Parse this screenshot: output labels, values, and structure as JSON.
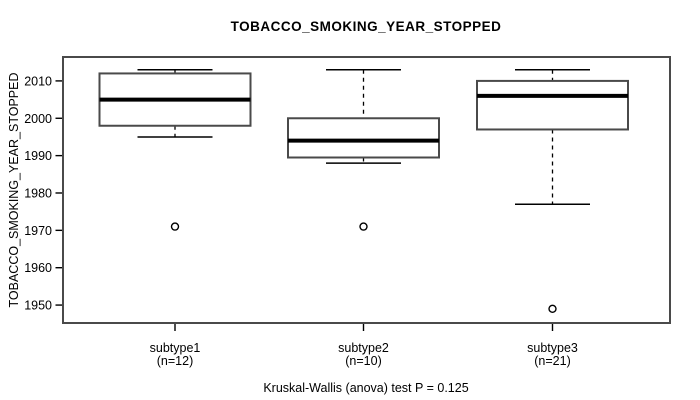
{
  "title": "TOBACCO_SMOKING_YEAR_STOPPED",
  "footer": "Kruskal-Wallis (anova) test P = 0.125",
  "colors": {
    "line": "#000000",
    "box_border": "#4a4a4a",
    "box_fill": "#ffffff",
    "frame": "#4a4a4a",
    "background": "#ffffff"
  },
  "chart_data": {
    "type": "boxplot",
    "title": "TOBACCO_SMOKING_YEAR_STOPPED",
    "ylabel": "TOBACCO_SMOKING_YEAR_STOPPED",
    "xlabel": "",
    "ylim": [
      1945.2,
      2016.4
    ],
    "yticks": [
      1950,
      1960,
      1970,
      1980,
      1990,
      2000,
      2010
    ],
    "grid": false,
    "legend": "none",
    "categories": [
      {
        "name": "subtype1",
        "n_label": "(n=12)",
        "n": 12
      },
      {
        "name": "subtype2",
        "n_label": "(n=10)",
        "n": 10
      },
      {
        "name": "subtype3",
        "n_label": "(n=21)",
        "n": 21
      }
    ],
    "series": [
      {
        "label": "subtype1",
        "whisker_low": 1995,
        "q1": 1998,
        "median": 2005,
        "q3": 2012,
        "whisker_high": 2013,
        "outliers": [
          1971
        ]
      },
      {
        "label": "subtype2",
        "whisker_low": 1988,
        "q1": 1989.5,
        "median": 1994,
        "q3": 2000,
        "whisker_high": 2013,
        "outliers": [
          1971
        ]
      },
      {
        "label": "subtype3",
        "whisker_low": 1977,
        "q1": 1997,
        "median": 2006,
        "q3": 2010,
        "whisker_high": 2013,
        "outliers": [
          1949
        ]
      }
    ]
  }
}
